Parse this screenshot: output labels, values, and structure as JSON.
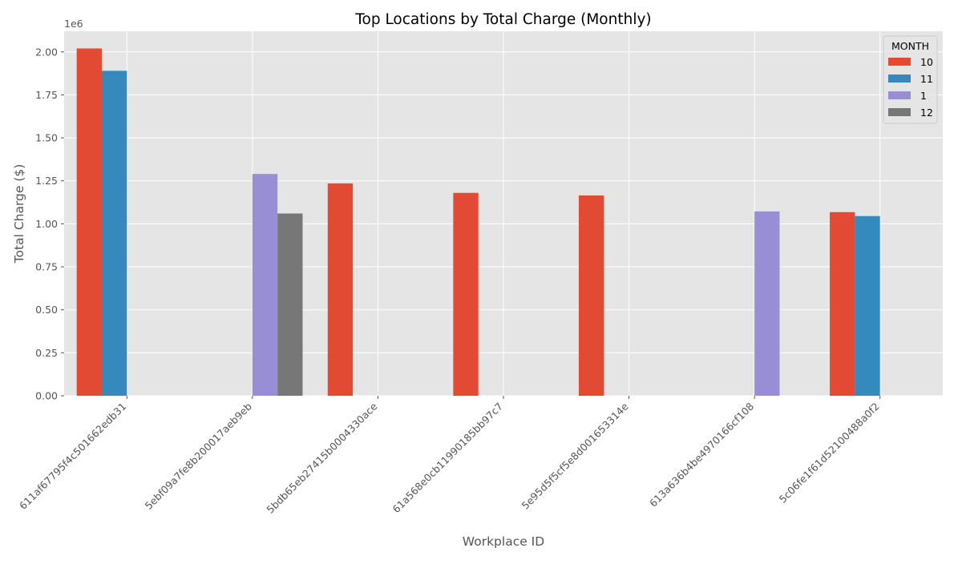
{
  "chart_data": {
    "type": "bar",
    "title": "Top Locations by Total Charge (Monthly)",
    "xlabel": "Workplace ID",
    "ylabel": "Total Charge ($)",
    "y_offset_label": "1e6",
    "ylim": [
      0,
      2120000
    ],
    "yticks": [
      0,
      250000,
      500000,
      750000,
      1000000,
      1250000,
      1500000,
      1750000,
      2000000
    ],
    "ytick_labels": [
      "0.00",
      "0.25",
      "0.50",
      "0.75",
      "1.00",
      "1.25",
      "1.50",
      "1.75",
      "2.00"
    ],
    "grid": true,
    "legend": {
      "title": "MONTH",
      "position": "top-right"
    },
    "categories": [
      "611af67795f4c501662edb31",
      "5ebf09a7fe8b200017aeb9eb",
      "5bdb65eb27415b0004330ace",
      "61a568e0cb11990185bb97c7",
      "5e95d5f5cf5e8d001653314e",
      "613a636b4be4970166cf108",
      "5c06fe1f61d52100488a0f2"
    ],
    "series": [
      {
        "name": "10",
        "color": "#E24A33",
        "values": [
          2020000,
          0,
          1235000,
          1180000,
          1165000,
          0,
          1068000
        ]
      },
      {
        "name": "11",
        "color": "#348ABD",
        "values": [
          1890000,
          0,
          0,
          0,
          0,
          0,
          1045000
        ]
      },
      {
        "name": "1",
        "color": "#988ED5",
        "values": [
          0,
          1290000,
          0,
          0,
          0,
          1072000,
          0
        ]
      },
      {
        "name": "12",
        "color": "#777777",
        "values": [
          0,
          1060000,
          0,
          0,
          0,
          0,
          0
        ]
      }
    ]
  }
}
